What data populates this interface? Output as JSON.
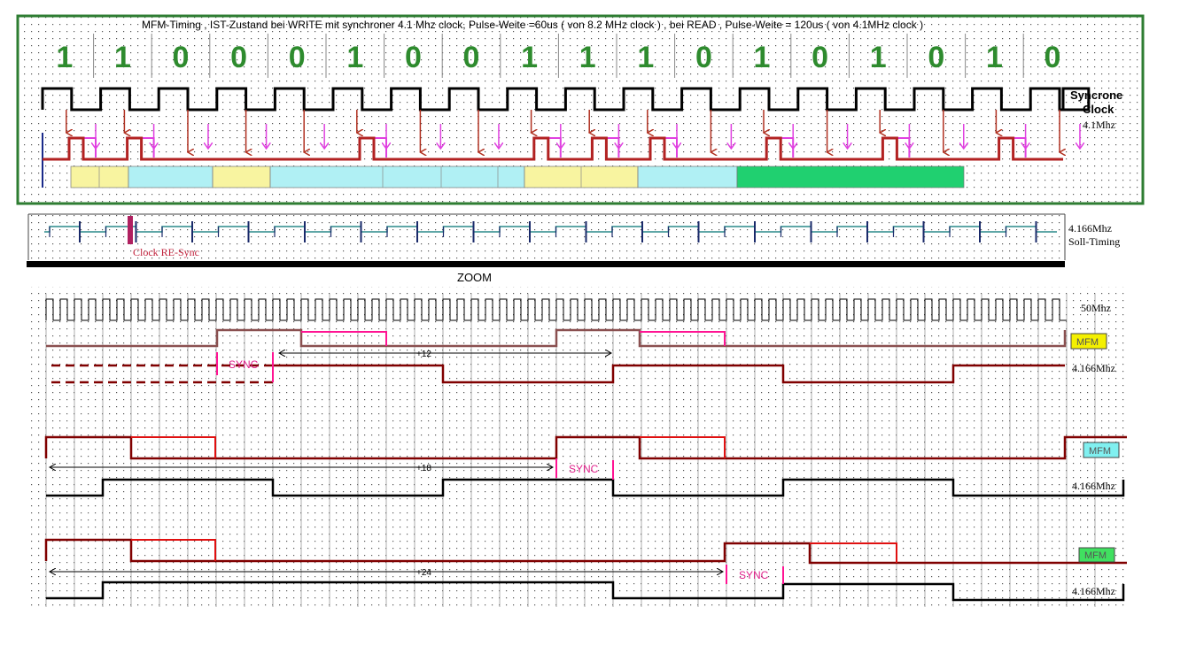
{
  "header": {
    "title": "MFM-Timing  , IST-Zustand  bei WRITE mit synchroner 4.1 Mhz clock,  Pulse-Weite =60us  ( von 8.2 MHz clock ) , bei READ , Pulse-Weite = 120us  ( von 4.1MHz clock )"
  },
  "bits": [
    "1",
    "1",
    "0",
    "0",
    "0",
    "1",
    "0",
    "0",
    "1",
    "1",
    "1",
    "0",
    "1",
    "0",
    "1",
    "0",
    "1",
    "0"
  ],
  "labels": {
    "sync_clock_1": "Syncrone",
    "sync_clock_2": "Clock",
    "sync_clock_3": "4.1Mhz",
    "soll_1": "4.166Mhz",
    "soll_2": "Soll-Timing",
    "resync": "Clock RE-Sync",
    "zoom": "ZOOM",
    "mhz50": "50Mhz",
    "mfm": "MFM",
    "clk4166": "4.166Mhz",
    "sync": "SYNC",
    "plus12": "+12",
    "plus18": "+18",
    "plus24": "+24"
  },
  "colors": {
    "frame_green": "#2e7d32",
    "bit_green": "#2e8b2e",
    "data_red": "#b22222",
    "magenta": "#e040e0",
    "arrow_red": "#b03020",
    "yellow": "#f8f4a0",
    "cyan": "#b0f0f4",
    "green_fill": "#20d070",
    "teal": "#2a8a8a",
    "navy": "#1a2a6a",
    "dark_red": "#800000",
    "pink": "#ff1493",
    "red": "#e01010",
    "badge_yellow": "#f4f000",
    "badge_cyan": "#80f0f0",
    "badge_green": "#40e060"
  }
}
